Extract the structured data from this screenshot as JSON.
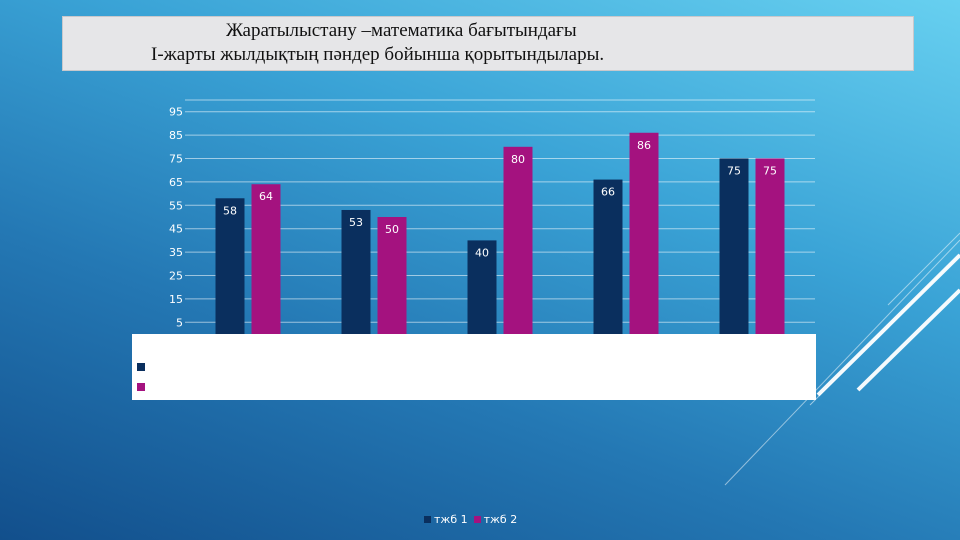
{
  "title": {
    "line1": "Жаратылыстану –математика бағытындағы",
    "line2": "І-жарты жылдықтың пәндер бойынша қорытындылары."
  },
  "colors": {
    "series1": "#0a2f5e",
    "series2": "#a4127f",
    "grid": "#ffffff"
  },
  "chart_data": {
    "type": "bar",
    "categories": [
      "",
      "",
      "",
      "",
      ""
    ],
    "series": [
      {
        "name": "тжб 1",
        "values": [
          58,
          53,
          40,
          66,
          75
        ]
      },
      {
        "name": "тжб 2",
        "values": [
          64,
          50,
          80,
          86,
          75
        ]
      }
    ],
    "yticks": [
      "5",
      "15",
      "25",
      "35",
      "45",
      "55",
      "65",
      "75",
      "85",
      "95"
    ],
    "ylim": [
      0,
      100
    ],
    "grid": true,
    "legend": "bottom"
  },
  "legend": {
    "series1_label": "тжб 1",
    "series2_label": "тжб 2"
  }
}
